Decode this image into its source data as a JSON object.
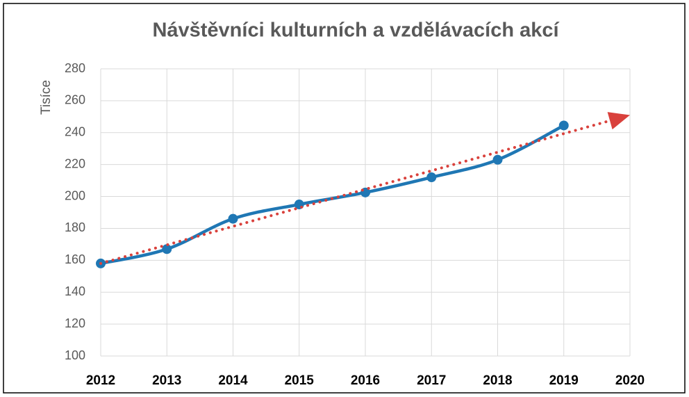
{
  "chart_data": {
    "type": "line",
    "title": "Návštěvníci kulturních a vzdělávacích akcí",
    "y_label": "Tisíce",
    "x": [
      2012,
      2013,
      2014,
      2015,
      2016,
      2017,
      2018,
      2019
    ],
    "series": [
      {
        "color": "#1f77b4",
        "values": [
          158,
          167,
          186,
          195,
          202.5,
          212,
          223,
          244.5
        ]
      }
    ],
    "trend": {
      "color": "#d9413c",
      "x": [
        2012,
        2020
      ],
      "values": [
        158,
        251
      ]
    },
    "xlim": [
      2012,
      2020
    ],
    "xticks": [
      2012,
      2013,
      2014,
      2015,
      2016,
      2017,
      2018,
      2019,
      2020
    ],
    "ylim": [
      100,
      280
    ],
    "yticks": [
      100,
      120,
      140,
      160,
      180,
      200,
      220,
      240,
      260,
      280
    ],
    "grid": true,
    "smooth": true
  }
}
